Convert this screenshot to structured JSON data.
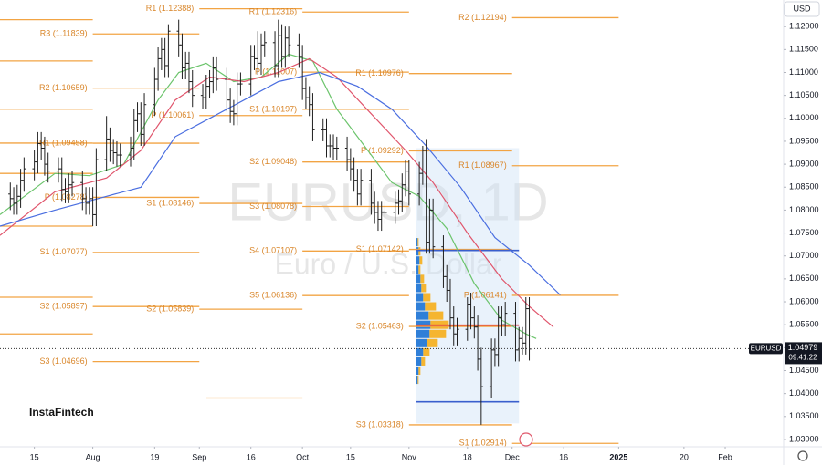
{
  "chart_data": {
    "type": "ohlc",
    "symbol": "EURUSD",
    "watermark_title": "EURUSD, 1D",
    "watermark_subtitle": "Euro / U.S. Dollar",
    "logo": "InstaFintech",
    "currency": "USD",
    "last_price": 1.04979,
    "time": "09:41:22",
    "bar_color": "#1f1f1f",
    "xlim": [
      4,
      232
    ],
    "ylim": [
      1.0284,
      1.1258
    ],
    "xticks": [
      {
        "value": 14,
        "label": "15"
      },
      {
        "value": 31,
        "label": "Aug"
      },
      {
        "value": 49,
        "label": "19"
      },
      {
        "value": 62,
        "label": "Sep"
      },
      {
        "value": 77,
        "label": "16"
      },
      {
        "value": 92,
        "label": "Oct"
      },
      {
        "value": 106,
        "label": "15"
      },
      {
        "value": 123,
        "label": "Nov"
      },
      {
        "value": 140,
        "label": "18"
      },
      {
        "value": 153,
        "label": "Dec"
      },
      {
        "value": 168,
        "label": "16"
      },
      {
        "value": 184,
        "label": "2025"
      },
      {
        "value": 203,
        "label": "20"
      },
      {
        "value": 215,
        "label": "Feb"
      }
    ],
    "yticks": [
      {
        "value": 1.12,
        "label": "1.12000"
      },
      {
        "value": 1.115,
        "label": "1.11500"
      },
      {
        "value": 1.11,
        "label": "1.11000"
      },
      {
        "value": 1.105,
        "label": "1.10500"
      },
      {
        "value": 1.1,
        "label": "1.10000"
      },
      {
        "value": 1.095,
        "label": "1.09500"
      },
      {
        "value": 1.09,
        "label": "1.09000"
      },
      {
        "value": 1.085,
        "label": "1.08500"
      },
      {
        "value": 1.08,
        "label": "1.08000"
      },
      {
        "value": 1.075,
        "label": "1.07500"
      },
      {
        "value": 1.07,
        "label": "1.07000"
      },
      {
        "value": 1.065,
        "label": "1.06500"
      },
      {
        "value": 1.06,
        "label": "1.06000"
      },
      {
        "value": 1.055,
        "label": "1.05500"
      },
      {
        "value": 1.05,
        "label": "1.05000"
      },
      {
        "value": 1.045,
        "label": "1.04500"
      },
      {
        "value": 1.04,
        "label": "1.04000"
      },
      {
        "value": 1.035,
        "label": "1.03500"
      },
      {
        "value": 1.03,
        "label": "1.03000"
      }
    ],
    "bars": [
      [
        7,
        1.0835,
        1.086,
        1.08,
        1.0825
      ],
      [
        8,
        1.0825,
        1.085,
        1.079,
        1.0815
      ],
      [
        9,
        1.0815,
        1.0855,
        1.079,
        1.083
      ],
      [
        10,
        1.083,
        1.089,
        1.0805,
        1.0865
      ],
      [
        11,
        1.0865,
        1.0915,
        1.084,
        1.089
      ],
      [
        14,
        1.089,
        1.093,
        1.0865,
        1.0905
      ],
      [
        15,
        1.0905,
        1.097,
        1.088,
        1.0945
      ],
      [
        16,
        1.0945,
        1.097,
        1.091,
        1.0935
      ],
      [
        17,
        1.0935,
        1.096,
        1.0875,
        1.09
      ],
      [
        18,
        1.09,
        1.0925,
        1.086,
        1.0885
      ],
      [
        21,
        1.0885,
        1.0915,
        1.086,
        1.089
      ],
      [
        22,
        1.089,
        1.0915,
        1.082,
        1.0845
      ],
      [
        23,
        1.0845,
        1.087,
        1.0815,
        1.084
      ],
      [
        24,
        1.084,
        1.088,
        1.0815,
        1.0855
      ],
      [
        25,
        1.0855,
        1.0885,
        1.083,
        1.086
      ],
      [
        28,
        1.086,
        1.0885,
        1.08,
        1.0825
      ],
      [
        29,
        1.0825,
        1.085,
        1.079,
        1.0815
      ],
      [
        30,
        1.0815,
        1.085,
        1.079,
        1.0825
      ],
      [
        31,
        1.0825,
        1.085,
        1.0765,
        1.079
      ],
      [
        32,
        1.079,
        1.0935,
        1.0765,
        1.091
      ],
      [
        35,
        1.091,
        1.1005,
        1.0885,
        1.0955
      ],
      [
        36,
        1.0955,
        1.098,
        1.0905,
        1.093
      ],
      [
        37,
        1.093,
        1.0955,
        1.09,
        1.0925
      ],
      [
        38,
        1.0925,
        1.095,
        1.0895,
        1.092
      ],
      [
        39,
        1.092,
        1.0945,
        1.0895,
        1.092
      ],
      [
        42,
        1.092,
        1.096,
        1.0895,
        1.0935
      ],
      [
        43,
        1.0935,
        1.102,
        1.091,
        1.0995
      ],
      [
        44,
        1.0995,
        1.1035,
        1.097,
        1.101
      ],
      [
        45,
        1.101,
        1.1035,
        1.094,
        1.0965
      ],
      [
        46,
        1.0965,
        1.1055,
        1.094,
        1.103
      ],
      [
        49,
        1.103,
        1.111,
        1.1005,
        1.1085
      ],
      [
        50,
        1.1085,
        1.1155,
        1.106,
        1.113
      ],
      [
        51,
        1.113,
        1.1175,
        1.1105,
        1.115
      ],
      [
        52,
        1.115,
        1.1175,
        1.109,
        1.1115
      ],
      [
        53,
        1.1115,
        1.1205,
        1.109,
        1.119
      ],
      [
        56,
        1.119,
        1.1215,
        1.1135,
        1.116
      ],
      [
        57,
        1.116,
        1.1185,
        1.1085,
        1.111
      ],
      [
        58,
        1.111,
        1.1145,
        1.1085,
        1.112
      ],
      [
        59,
        1.112,
        1.1145,
        1.1055,
        1.108
      ],
      [
        60,
        1.108,
        1.1105,
        1.1025,
        1.105
      ],
      [
        63,
        1.105,
        1.1075,
        1.102,
        1.1045
      ],
      [
        64,
        1.1045,
        1.1095,
        1.102,
        1.107
      ],
      [
        65,
        1.107,
        1.1105,
        1.1045,
        1.108
      ],
      [
        66,
        1.108,
        1.1135,
        1.1055,
        1.111
      ],
      [
        67,
        1.111,
        1.1135,
        1.106,
        1.1085
      ],
      [
        70,
        1.1085,
        1.111,
        1.1015,
        1.104
      ],
      [
        71,
        1.104,
        1.1065,
        1.099,
        1.1015
      ],
      [
        72,
        1.1015,
        1.104,
        1.0985,
        1.101
      ],
      [
        73,
        1.101,
        1.11,
        1.0985,
        1.1075
      ],
      [
        74,
        1.1075,
        1.11,
        1.105,
        1.1075
      ],
      [
        77,
        1.1075,
        1.116,
        1.105,
        1.1135
      ],
      [
        78,
        1.1135,
        1.116,
        1.1105,
        1.113
      ],
      [
        79,
        1.113,
        1.119,
        1.1095,
        1.112
      ],
      [
        80,
        1.112,
        1.1185,
        1.1095,
        1.116
      ],
      [
        81,
        1.116,
        1.119,
        1.1135,
        1.1165
      ],
      [
        84,
        1.1165,
        1.119,
        1.109,
        1.1115
      ],
      [
        85,
        1.1115,
        1.1215,
        1.109,
        1.118
      ],
      [
        86,
        1.118,
        1.1205,
        1.111,
        1.1135
      ],
      [
        87,
        1.1135,
        1.12,
        1.111,
        1.1175
      ],
      [
        88,
        1.1175,
        1.12,
        1.1135,
        1.116
      ],
      [
        91,
        1.116,
        1.1185,
        1.111,
        1.1135
      ],
      [
        92,
        1.1135,
        1.116,
        1.104,
        1.1065
      ],
      [
        93,
        1.1065,
        1.109,
        1.102,
        1.1045
      ],
      [
        94,
        1.1045,
        1.107,
        1.1005,
        1.103
      ],
      [
        95,
        1.103,
        1.1055,
        1.095,
        1.0975
      ],
      [
        98,
        1.0975,
        1.1,
        1.095,
        1.0975
      ],
      [
        99,
        1.0975,
        1.1,
        1.0915,
        1.094
      ],
      [
        100,
        1.094,
        1.0965,
        1.0915,
        1.094
      ],
      [
        101,
        1.094,
        1.0965,
        1.091,
        1.0935
      ],
      [
        102,
        1.0935,
        1.096,
        1.091,
        1.0935
      ],
      [
        105,
        1.0935,
        1.096,
        1.0885,
        1.091
      ],
      [
        106,
        1.091,
        1.0935,
        1.0865,
        1.089
      ],
      [
        107,
        1.089,
        1.0915,
        1.084,
        1.0865
      ],
      [
        108,
        1.0865,
        1.089,
        1.081,
        1.0835
      ],
      [
        109,
        1.0835,
        1.089,
        1.081,
        1.0865
      ],
      [
        112,
        1.0865,
        1.089,
        1.079,
        1.0815
      ],
      [
        113,
        1.0815,
        1.084,
        1.077,
        1.0795
      ],
      [
        114,
        1.0795,
        1.082,
        1.0755,
        1.078
      ],
      [
        115,
        1.078,
        1.082,
        1.0755,
        1.0795
      ],
      [
        116,
        1.0795,
        1.082,
        1.077,
        1.0795
      ],
      [
        119,
        1.0795,
        1.084,
        1.077,
        1.0815
      ],
      [
        120,
        1.0815,
        1.0845,
        1.079,
        1.082
      ],
      [
        121,
        1.082,
        1.088,
        1.0795,
        1.0855
      ],
      [
        122,
        1.0855,
        1.091,
        1.083,
        1.0885
      ],
      [
        123,
        1.0885,
        1.091,
        1.081,
        1.0835
      ],
      [
        126,
        1.0835,
        1.0905,
        1.081,
        1.088
      ],
      [
        127,
        1.088,
        1.094,
        1.0855,
        1.093
      ],
      [
        128,
        1.093,
        1.0955,
        1.0705,
        1.073
      ],
      [
        129,
        1.073,
        1.0825,
        1.0705,
        1.08
      ],
      [
        130,
        1.08,
        1.0825,
        1.0695,
        1.072
      ],
      [
        133,
        1.072,
        1.0745,
        1.063,
        1.0655
      ],
      [
        134,
        1.0655,
        1.068,
        1.06,
        1.0625
      ],
      [
        135,
        1.0625,
        1.065,
        1.054,
        1.0565
      ],
      [
        136,
        1.0565,
        1.059,
        1.0505,
        1.053
      ],
      [
        137,
        1.053,
        1.0565,
        1.0505,
        1.054
      ],
      [
        140,
        1.054,
        1.061,
        1.0515,
        1.0595
      ],
      [
        141,
        1.0595,
        1.062,
        1.054,
        1.0565
      ],
      [
        142,
        1.0565,
        1.059,
        1.052,
        1.0545
      ],
      [
        143,
        1.0545,
        1.057,
        1.045,
        1.0475
      ],
      [
        144,
        1.0475,
        1.05,
        1.0332,
        1.0415
      ],
      [
        147,
        1.0415,
        1.052,
        1.039,
        1.0495
      ],
      [
        148,
        1.0495,
        1.052,
        1.046,
        1.0485
      ],
      [
        149,
        1.0485,
        1.059,
        1.046,
        1.0565
      ],
      [
        150,
        1.0565,
        1.059,
        1.0525,
        1.055
      ],
      [
        151,
        1.055,
        1.06,
        1.0525,
        1.0575
      ],
      [
        154,
        1.0575,
        1.06,
        1.047,
        1.0495
      ],
      [
        155,
        1.0495,
        1.0545,
        1.047,
        1.052
      ],
      [
        156,
        1.052,
        1.0545,
        1.0485,
        1.051
      ],
      [
        157,
        1.051,
        1.061,
        1.0485,
        1.0585
      ],
      [
        158,
        1.0585,
        1.061,
        1.0472,
        1.0497
      ]
    ],
    "moving_averages": [
      {
        "color": "#6cc46c",
        "x": [
          4,
          20,
          30,
          40,
          50,
          56,
          64,
          72,
          80,
          88,
          95,
          102,
          110,
          118,
          126,
          134,
          142,
          150,
          157,
          160
        ],
        "values": [
          1.079,
          1.088,
          1.0875,
          1.09,
          1.104,
          1.11,
          1.112,
          1.108,
          1.109,
          1.114,
          1.1125,
          1.102,
          1.094,
          1.086,
          1.083,
          1.076,
          1.064,
          1.056,
          1.053,
          1.052
        ]
      },
      {
        "color": "#e0556c",
        "x": [
          4,
          20,
          35,
          45,
          55,
          65,
          75,
          85,
          94,
          102,
          112,
          122,
          130,
          140,
          150,
          158,
          165
        ],
        "values": [
          1.0745,
          1.084,
          1.087,
          1.093,
          1.104,
          1.109,
          1.108,
          1.11,
          1.113,
          1.109,
          1.101,
          1.093,
          1.086,
          1.075,
          1.065,
          1.059,
          1.0545
        ]
      },
      {
        "color": "#4a6ee0",
        "x": [
          4,
          20,
          35,
          45,
          55,
          65,
          75,
          85,
          97,
          108,
          118,
          128,
          138,
          148,
          158,
          167
        ],
        "values": [
          1.0765,
          1.08,
          1.083,
          1.085,
          1.096,
          1.1,
          1.104,
          1.108,
          1.11,
          1.107,
          1.102,
          1.094,
          1.085,
          1.074,
          1.068,
          1.0615
        ]
      }
    ],
    "pivot_color": "#f2a444",
    "pivot_sets": [
      {
        "start": 4,
        "end": 31,
        "levels": [
          {
            "label": null,
            "value": 1.1215
          },
          {
            "label": null,
            "value": 1.1125
          },
          {
            "label": null,
            "value": 1.102
          },
          {
            "label": null,
            "value": 1.0946
          },
          {
            "label": null,
            "value": 1.088
          },
          {
            "label": null,
            "value": 1.0765
          },
          {
            "label": null,
            "value": 1.061
          },
          {
            "label": null,
            "value": 1.053
          }
        ]
      },
      {
        "start": 31,
        "end": 62,
        "levels": [
          {
            "label": "R3 (1.11839)",
            "value": 1.11839
          },
          {
            "label": "R2 (1.10659)",
            "value": 1.10659
          },
          {
            "label": "R1 (1.09458)",
            "value": 1.09458
          },
          {
            "label": "P (1.08278)",
            "value": 1.08278
          },
          {
            "label": "S1 (1.07077)",
            "value": 1.07077
          },
          {
            "label": "S2 (1.05897)",
            "value": 1.05897
          },
          {
            "label": "S3 (1.04696)",
            "value": 1.04696
          }
        ]
      },
      {
        "start": 62,
        "end": 92,
        "levels": [
          {
            "label": "R1 (1.12388)",
            "value": 1.12388
          },
          {
            "label": "P (1.10061)",
            "value": 1.10061
          },
          {
            "label": "S1 (1.08146)",
            "value": 1.08146
          },
          {
            "label": "S2 (1.05839)",
            "value": 1.05839
          },
          {
            "label": "S3 (1.03904)",
            "value": 1.03904
          }
        ]
      },
      {
        "start": 92,
        "end": 123,
        "levels": [
          {
            "label": "R1 (1.12316)",
            "value": 1.12316
          },
          {
            "label": "P (1.11007)",
            "value": 1.11007
          },
          {
            "label": "S1 (1.10197)",
            "value": 1.10197
          },
          {
            "label": "S2 (1.09048)",
            "value": 1.09048
          },
          {
            "label": "S3 (1.08078)",
            "value": 1.08078
          },
          {
            "label": "S4 (1.07107)",
            "value": 1.07107
          },
          {
            "label": "S5 (1.06136)",
            "value": 1.06136
          }
        ]
      },
      {
        "start": 123,
        "end": 153,
        "levels": [
          {
            "label": "R1 (1.10976)",
            "value": 1.10976
          },
          {
            "label": "P (1.09292)",
            "value": 1.09292
          },
          {
            "label": "S1 (1.07142)",
            "value": 1.07142
          },
          {
            "label": "S2 (1.05463)",
            "value": 1.05463
          },
          {
            "label": "S3 (1.03318)",
            "value": 1.03318
          }
        ]
      },
      {
        "start": 153,
        "end": 184,
        "levels": [
          {
            "label": "R2 (1.12194)",
            "value": 1.12194
          },
          {
            "label": "R1 (1.08967)",
            "value": 1.08967
          },
          {
            "label": "P (1.06141)",
            "value": 1.06141
          },
          {
            "label": "S1 (1.02914)",
            "value": 1.02914
          }
        ]
      }
    ],
    "value_area": {
      "start": 125,
      "end": 155,
      "top": 1.0935,
      "bottom": 1.0335,
      "high_line": 1.0712,
      "low_line": 1.0382,
      "poc": 1.0549
    },
    "volume_profile": {
      "prices": [
        1.073,
        1.071,
        1.069,
        1.067,
        1.065,
        1.063,
        1.061,
        1.059,
        1.057,
        1.055,
        1.053,
        1.051,
        1.049,
        1.047,
        1.045,
        1.043
      ],
      "blue": [
        2,
        3,
        4,
        3,
        5,
        6,
        8,
        10,
        14,
        16,
        15,
        12,
        8,
        6,
        3,
        2
      ],
      "orange": [
        1,
        2,
        3,
        2,
        4,
        5,
        8,
        12,
        16,
        20,
        18,
        12,
        7,
        4,
        2,
        1
      ]
    }
  }
}
